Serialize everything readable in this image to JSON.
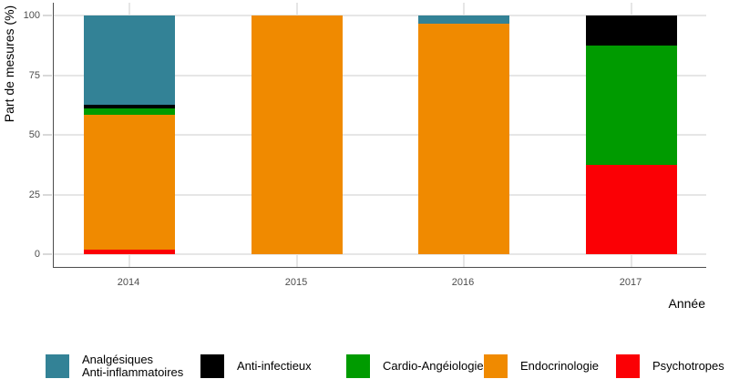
{
  "chart_data": {
    "type": "bar",
    "stacked": true,
    "title": "",
    "xlabel": "Année",
    "ylabel": "Part de mesures (%)",
    "categories": [
      "2014",
      "2015",
      "2016",
      "2017"
    ],
    "y_ticks": [
      0,
      25,
      50,
      75,
      100
    ],
    "ylim": [
      0,
      100
    ],
    "grid": true,
    "legend_position": "bottom",
    "series": [
      {
        "name": "Psychotropes",
        "color": "#fb0005",
        "values": [
          2,
          0,
          0,
          37.5
        ]
      },
      {
        "name": "Endocrinologie",
        "color": "#f08a00",
        "values": [
          56.5,
          100,
          96.5,
          0
        ]
      },
      {
        "name": "Cardio-Angéiologie",
        "color": "#009b00",
        "values": [
          2.5,
          0,
          0,
          50
        ]
      },
      {
        "name": "Anti-infectieux",
        "color": "#000000",
        "values": [
          1.5,
          0,
          0,
          12.5
        ]
      },
      {
        "name": "Analgésiques Anti-inflammatoires",
        "color": "#338296",
        "values": [
          37.5,
          0,
          3.5,
          0
        ]
      }
    ],
    "legend": [
      {
        "lines": [
          "Analgésiques",
          "Anti-inflammatoires"
        ],
        "color": "#338296"
      },
      {
        "lines": [
          "Anti-infectieux"
        ],
        "color": "#000000"
      },
      {
        "lines": [
          "Cardio-Angéiologie"
        ],
        "color": "#009b00"
      },
      {
        "lines": [
          "Endocrinologie"
        ],
        "color": "#f08a00"
      },
      {
        "lines": [
          "Psychotropes"
        ],
        "color": "#fb0005"
      }
    ]
  }
}
